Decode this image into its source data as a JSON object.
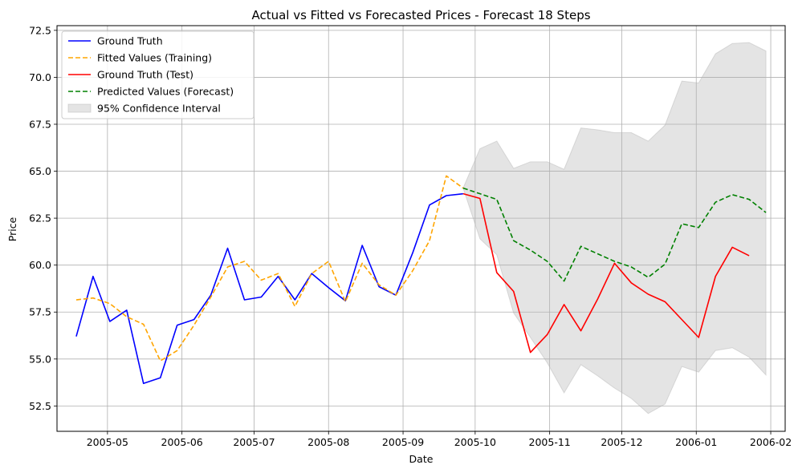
{
  "chart_data": {
    "type": "line",
    "title": "Actual vs Fitted vs Forecasted Prices - Forecast 18 Steps",
    "xlabel": "Date",
    "ylabel": "Price",
    "xlim": [
      "2005-04-10",
      "2006-02-07"
    ],
    "ylim": [
      51.15,
      72.75
    ],
    "x_ticks": [
      "2005-05-01",
      "2005-06-01",
      "2005-07-01",
      "2005-08-01",
      "2005-09-01",
      "2005-10-01",
      "2005-11-01",
      "2005-12-01",
      "2006-01-01",
      "2006-02-01"
    ],
    "x_tick_labels": [
      "2005-05",
      "2005-06",
      "2005-07",
      "2005-08",
      "2005-09",
      "2005-10",
      "2005-11",
      "2005-12",
      "2006-01",
      "2006-02"
    ],
    "y_ticks": [
      52.5,
      55.0,
      57.5,
      60.0,
      62.5,
      65.0,
      67.5,
      70.0,
      72.5
    ],
    "y_tick_labels": [
      "52.5",
      "55.0",
      "57.5",
      "60.0",
      "62.5",
      "65.0",
      "67.5",
      "70.0",
      "72.5"
    ],
    "grid": true,
    "legend_position": "top-left",
    "series": [
      {
        "name": "Ground Truth",
        "color": "#0000ff",
        "style": "solid",
        "x": [
          "2005-04-18",
          "2005-04-25",
          "2005-05-02",
          "2005-05-09",
          "2005-05-16",
          "2005-05-23",
          "2005-05-30",
          "2005-06-06",
          "2005-06-13",
          "2005-06-20",
          "2005-06-27",
          "2005-07-04",
          "2005-07-11",
          "2005-07-18",
          "2005-07-25",
          "2005-08-01",
          "2005-08-08",
          "2005-08-15",
          "2005-08-22",
          "2005-08-29",
          "2005-09-05",
          "2005-09-12",
          "2005-09-19",
          "2005-09-26"
        ],
        "values": [
          56.2,
          59.4,
          57.0,
          57.6,
          53.7,
          54.0,
          56.8,
          57.1,
          58.4,
          60.9,
          58.15,
          58.3,
          59.4,
          58.15,
          59.55,
          58.8,
          58.1,
          61.05,
          58.85,
          58.4,
          60.65,
          63.2,
          63.7,
          63.8
        ]
      },
      {
        "name": "Fitted Values (Training)",
        "color": "#ffa500",
        "style": "dashed",
        "x": [
          "2005-04-18",
          "2005-04-25",
          "2005-05-02",
          "2005-05-09",
          "2005-05-16",
          "2005-05-23",
          "2005-05-30",
          "2005-06-06",
          "2005-06-13",
          "2005-06-20",
          "2005-06-27",
          "2005-07-04",
          "2005-07-11",
          "2005-07-18",
          "2005-07-25",
          "2005-08-01",
          "2005-08-08",
          "2005-08-15",
          "2005-08-22",
          "2005-08-29",
          "2005-09-05",
          "2005-09-12",
          "2005-09-19",
          "2005-09-26"
        ],
        "values": [
          58.15,
          58.25,
          57.95,
          57.25,
          56.85,
          54.9,
          55.45,
          56.8,
          58.3,
          59.9,
          60.2,
          59.2,
          59.55,
          57.8,
          59.55,
          60.2,
          58.05,
          60.1,
          58.95,
          58.4,
          59.7,
          61.3,
          64.75,
          64.1
        ]
      },
      {
        "name": "Ground Truth (Test)",
        "color": "#ff0000",
        "style": "solid",
        "x": [
          "2005-09-26",
          "2005-10-03",
          "2005-10-10",
          "2005-10-17",
          "2005-10-24",
          "2005-10-31",
          "2005-11-07",
          "2005-11-14",
          "2005-11-21",
          "2005-11-28",
          "2005-12-05",
          "2005-12-12",
          "2005-12-19",
          "2005-12-26",
          "2006-01-02",
          "2006-01-09",
          "2006-01-16",
          "2006-01-23"
        ],
        "values": [
          63.8,
          63.55,
          59.6,
          58.6,
          55.35,
          56.3,
          57.9,
          56.5,
          58.2,
          60.1,
          59.05,
          58.45,
          58.05,
          57.1,
          56.15,
          59.4,
          60.95,
          60.5
        ]
      },
      {
        "name": "Predicted Values (Forecast)",
        "color": "#008000",
        "style": "dashed",
        "x": [
          "2005-09-26",
          "2005-10-03",
          "2005-10-10",
          "2005-10-17",
          "2005-10-24",
          "2005-10-31",
          "2005-11-07",
          "2005-11-14",
          "2005-11-21",
          "2005-11-28",
          "2005-12-05",
          "2005-12-12",
          "2005-12-19",
          "2005-12-26",
          "2006-01-02",
          "2006-01-09",
          "2006-01-16",
          "2006-01-23",
          "2006-01-30"
        ],
        "values": [
          64.1,
          63.8,
          63.5,
          61.3,
          60.8,
          60.2,
          59.15,
          61.0,
          60.6,
          60.2,
          59.9,
          59.35,
          60.05,
          62.2,
          62.0,
          63.35,
          63.75,
          63.5,
          62.8
        ]
      }
    ],
    "confidence_band": {
      "name": "95% Confidence Interval",
      "color": "#b3b3b3",
      "opacity": 0.35,
      "x": [
        "2005-09-26",
        "2005-10-03",
        "2005-10-10",
        "2005-10-17",
        "2005-10-24",
        "2005-10-31",
        "2005-11-07",
        "2005-11-14",
        "2005-11-21",
        "2005-11-28",
        "2005-12-05",
        "2005-12-12",
        "2005-12-19",
        "2005-12-26",
        "2006-01-02",
        "2006-01-09",
        "2006-01-16",
        "2006-01-23",
        "2006-01-30"
      ],
      "upper": [
        64.1,
        66.2,
        66.6,
        65.15,
        65.5,
        65.5,
        65.1,
        67.3,
        67.2,
        67.05,
        67.05,
        66.6,
        67.45,
        69.8,
        69.7,
        71.25,
        71.8,
        71.85,
        71.4
      ],
      "lower": [
        64.1,
        61.4,
        60.55,
        57.45,
        56.15,
        54.8,
        53.2,
        54.7,
        54.1,
        53.45,
        52.9,
        52.1,
        52.6,
        54.6,
        54.3,
        55.45,
        55.6,
        55.1,
        54.15
      ]
    }
  }
}
